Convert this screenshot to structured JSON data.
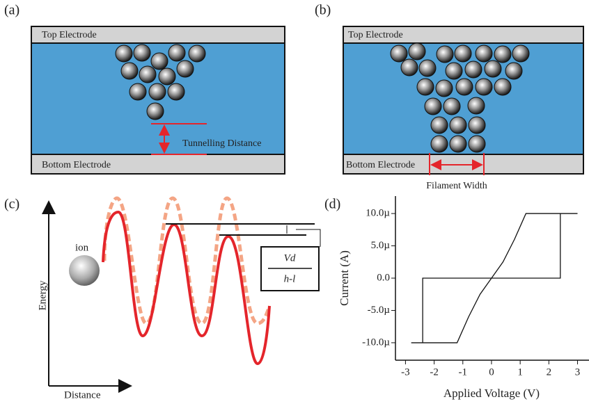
{
  "panels": {
    "a": {
      "label": "(a)",
      "top": "Top Electrode",
      "bottom": "Bottom Electrode",
      "annotation": "Tunnelling Distance"
    },
    "b": {
      "label": "(b)",
      "top": "Top Electrode",
      "bottom": "Bottom Electrode",
      "annotation": "Filament Width"
    },
    "c": {
      "label": "(c)",
      "ion": "ion",
      "y_label": "Energy",
      "x_label": "Distance",
      "numerator": "Vd",
      "denominator": "h-l"
    }
  },
  "chart_data": {
    "type": "line",
    "label": "(d)",
    "x_label": "Applied Voltage (V)",
    "y_label": "Current (A)",
    "x": [
      -2.8,
      -1.2,
      -0.8,
      -0.4,
      0,
      0.4,
      0.8,
      1.2,
      3.0,
      2.4,
      2.4,
      -2.4,
      -2.4,
      -2.8
    ],
    "series": [
      {
        "color": "#111111",
        "values": [
          -1e-05,
          -1e-05,
          -6e-06,
          -2.5e-06,
          0,
          2.5e-06,
          6e-06,
          1e-05,
          1e-05,
          1e-05,
          0,
          0,
          -1e-05,
          -1e-05
        ]
      }
    ],
    "xlim": [
      -3.35,
      3.4
    ],
    "xticks": [
      -3,
      -2,
      -1,
      0,
      1,
      2,
      3
    ],
    "ylim": [
      -1.27e-05,
      1.27e-05
    ],
    "yticks": [
      {
        "value": 1e-05,
        "label": "10.0µ"
      },
      {
        "value": 5e-06,
        "label": "5.0µ"
      },
      {
        "value": 0,
        "label": "0.0"
      },
      {
        "value": -5e-06,
        "label": "-5.0µ"
      },
      {
        "value": -1e-05,
        "label": "-10.0µ"
      }
    ]
  }
}
